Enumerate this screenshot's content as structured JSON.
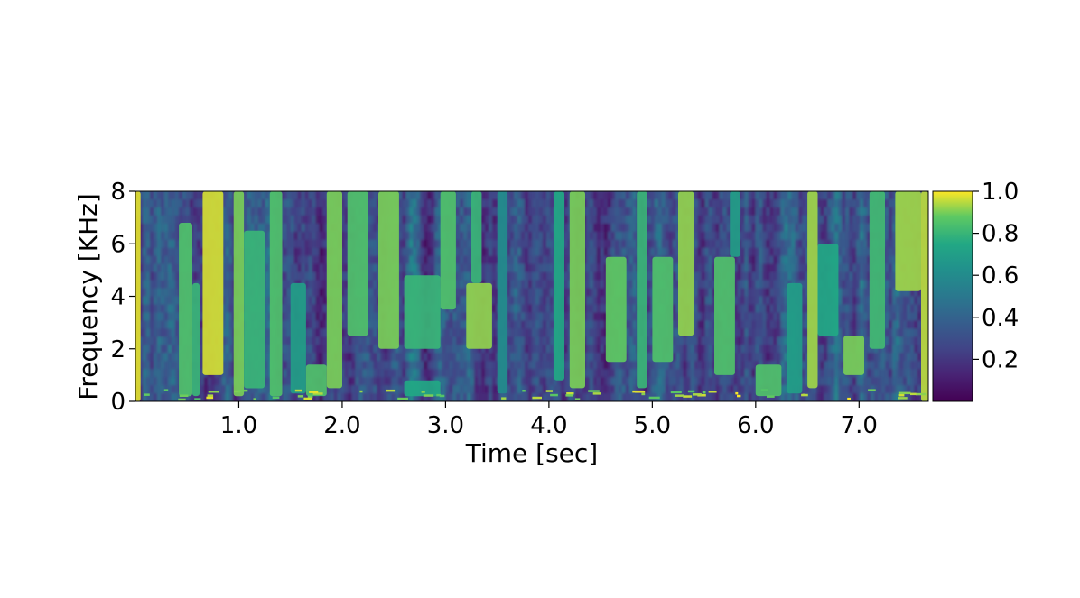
{
  "chart_data": {
    "type": "heatmap",
    "title": "",
    "xlabel": "Time [sec]",
    "ylabel": "Frequency [KHz]",
    "xlim": [
      0,
      7.67
    ],
    "ylim": [
      0,
      8
    ],
    "x_ticks": [
      1.0,
      2.0,
      3.0,
      4.0,
      5.0,
      6.0,
      7.0
    ],
    "x_tick_labels": [
      "1.0",
      "2.0",
      "3.0",
      "4.0",
      "5.0",
      "6.0",
      "7.0"
    ],
    "y_ticks": [
      0,
      2,
      4,
      6,
      8
    ],
    "y_tick_labels": [
      "0",
      "2",
      "4",
      "6",
      "8"
    ],
    "colormap": "viridis",
    "colorbar": {
      "range": [
        0,
        1.0
      ],
      "ticks": [
        0.2,
        0.4,
        0.6,
        0.8,
        1.0
      ],
      "tick_labels": [
        "0.2",
        "0.4",
        "0.6",
        "0.8",
        "1.0"
      ]
    },
    "grid": false,
    "bands": [
      {
        "x": [
          0.0,
          0.05
        ],
        "y": [
          0,
          8
        ],
        "v": 0.98
      },
      {
        "x": [
          0.42,
          0.55
        ],
        "y": [
          0.2,
          6.8
        ],
        "v": 0.85
      },
      {
        "x": [
          0.55,
          0.62
        ],
        "y": [
          0.2,
          4.5
        ],
        "v": 0.8
      },
      {
        "x": [
          0.65,
          0.85
        ],
        "y": [
          1.0,
          8
        ],
        "v": 0.97
      },
      {
        "x": [
          0.95,
          1.05
        ],
        "y": [
          0.2,
          8
        ],
        "v": 0.9
      },
      {
        "x": [
          1.05,
          1.25
        ],
        "y": [
          0.5,
          6.5
        ],
        "v": 0.8
      },
      {
        "x": [
          1.3,
          1.42
        ],
        "y": [
          0.2,
          8
        ],
        "v": 0.85
      },
      {
        "x": [
          1.5,
          1.65
        ],
        "y": [
          0.3,
          4.5
        ],
        "v": 0.7
      },
      {
        "x": [
          1.65,
          1.85
        ],
        "y": [
          0.2,
          1.4
        ],
        "v": 0.85
      },
      {
        "x": [
          1.85,
          2.0
        ],
        "y": [
          0.5,
          8
        ],
        "v": 0.9
      },
      {
        "x": [
          2.05,
          2.25
        ],
        "y": [
          2.5,
          8
        ],
        "v": 0.85
      },
      {
        "x": [
          2.35,
          2.55
        ],
        "y": [
          2.0,
          8
        ],
        "v": 0.9
      },
      {
        "x": [
          2.6,
          2.95
        ],
        "y": [
          2.0,
          4.8
        ],
        "v": 0.8
      },
      {
        "x": [
          2.6,
          2.95
        ],
        "y": [
          0.2,
          0.8
        ],
        "v": 0.75
      },
      {
        "x": [
          2.95,
          3.1
        ],
        "y": [
          3.5,
          8
        ],
        "v": 0.85
      },
      {
        "x": [
          3.2,
          3.45
        ],
        "y": [
          2.0,
          4.5
        ],
        "v": 0.92
      },
      {
        "x": [
          3.25,
          3.35
        ],
        "y": [
          4.5,
          8
        ],
        "v": 0.8
      },
      {
        "x": [
          3.5,
          3.6
        ],
        "y": [
          0.3,
          8
        ],
        "v": 0.6
      },
      {
        "x": [
          4.05,
          4.15
        ],
        "y": [
          0.8,
          8
        ],
        "v": 0.75
      },
      {
        "x": [
          4.2,
          4.35
        ],
        "y": [
          0.5,
          8
        ],
        "v": 0.9
      },
      {
        "x": [
          4.55,
          4.75
        ],
        "y": [
          1.5,
          5.5
        ],
        "v": 0.88
      },
      {
        "x": [
          4.85,
          4.95
        ],
        "y": [
          0.5,
          8
        ],
        "v": 0.8
      },
      {
        "x": [
          5.0,
          5.2
        ],
        "y": [
          1.5,
          5.5
        ],
        "v": 0.85
      },
      {
        "x": [
          5.25,
          5.4
        ],
        "y": [
          2.5,
          8
        ],
        "v": 0.92
      },
      {
        "x": [
          5.6,
          5.8
        ],
        "y": [
          1.0,
          5.5
        ],
        "v": 0.85
      },
      {
        "x": [
          5.75,
          5.85
        ],
        "y": [
          5.5,
          8
        ],
        "v": 0.7
      },
      {
        "x": [
          6.0,
          6.25
        ],
        "y": [
          0.2,
          1.4
        ],
        "v": 0.85
      },
      {
        "x": [
          6.3,
          6.45
        ],
        "y": [
          0.3,
          4.5
        ],
        "v": 0.7
      },
      {
        "x": [
          6.5,
          6.6
        ],
        "y": [
          0.5,
          8
        ],
        "v": 0.93
      },
      {
        "x": [
          6.6,
          6.8
        ],
        "y": [
          2.5,
          6.0
        ],
        "v": 0.75
      },
      {
        "x": [
          6.85,
          7.05
        ],
        "y": [
          1.0,
          2.5
        ],
        "v": 0.9
      },
      {
        "x": [
          7.1,
          7.25
        ],
        "y": [
          2.0,
          8
        ],
        "v": 0.82
      },
      {
        "x": [
          7.35,
          7.6
        ],
        "y": [
          4.2,
          8
        ],
        "v": 0.93
      },
      {
        "x": [
          7.6,
          7.67
        ],
        "y": [
          0,
          8
        ],
        "v": 0.95
      }
    ]
  }
}
